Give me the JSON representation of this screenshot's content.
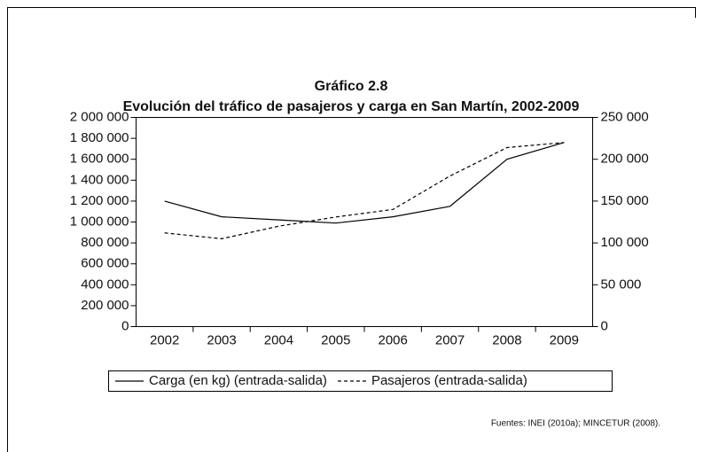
{
  "chart_data": {
    "type": "line",
    "title": "Gráfico 2.8",
    "subtitle": "Evolución del tráfico de pasajeros y carga en San Martín, 2002-2009",
    "categories": [
      "2002",
      "2003",
      "2004",
      "2005",
      "2006",
      "2007",
      "2008",
      "2009"
    ],
    "series": [
      {
        "name": "Carga (en kg) (entrada-salida)",
        "color": "#000000",
        "dash": "solid",
        "values": [
          1200000,
          1050000,
          1020000,
          990000,
          1050000,
          1150000,
          1600000,
          1760000
        ]
      },
      {
        "name": "Pasajeros (entrada-salida)",
        "color": "#000000",
        "dash": "dashed",
        "axis": "y2",
        "values": [
          112000,
          105000,
          120000,
          131000,
          140000,
          180000,
          214000,
          220000
        ]
      }
    ],
    "ylim": [
      0,
      2000000
    ],
    "yticks": [
      0,
      {
        "value": 200000,
        "label": "200 000"
      },
      {
        "value": 400000,
        "label": "400 000"
      },
      {
        "value": 600000,
        "label": "600 000"
      },
      {
        "value": 800000,
        "label": "800 000"
      },
      {
        "value": 1000000,
        "label": "1 000 000"
      },
      {
        "value": 1200000,
        "label": "1 200 000"
      },
      {
        "value": 1400000,
        "label": "1 400 000"
      },
      {
        "value": 1600000,
        "label": "1 600 000"
      },
      {
        "value": 1800000,
        "label": "1 800 000"
      },
      {
        "value": 2000000,
        "label": "2 000 000"
      }
    ],
    "y2lim": [
      0,
      250000
    ],
    "y2ticks": [
      0,
      {
        "value": 50000,
        "label": "50 000"
      },
      {
        "value": 100000,
        "label": "100 000"
      },
      {
        "value": 150000,
        "label": "150 000"
      },
      {
        "value": 200000,
        "label": "200 000"
      },
      {
        "value": 250000,
        "label": "250 000"
      }
    ],
    "legend": "bottom",
    "source": "Fuentes: INEI (2010a); MINCETUR (2008)."
  }
}
